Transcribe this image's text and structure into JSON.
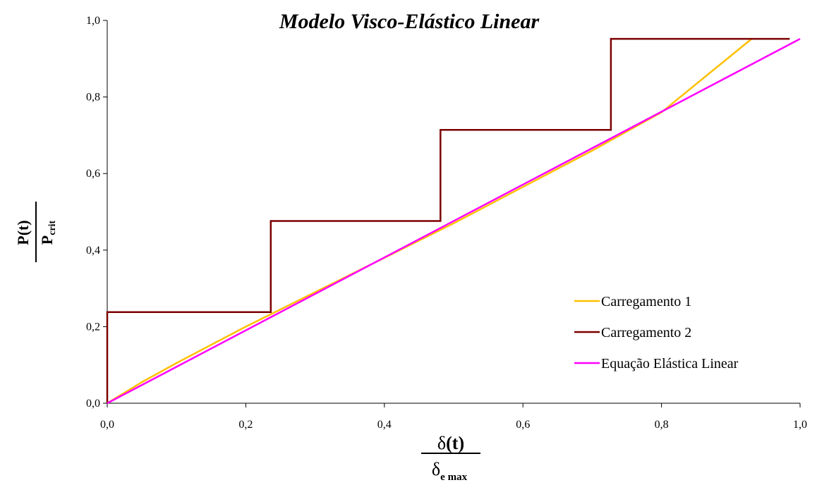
{
  "chart_data": {
    "type": "line",
    "title": "Modelo Visco-Elástico Linear",
    "xlabel": {
      "numerator_symbol": "δ",
      "numerator_rest": "(t)",
      "denominator_symbol": "δ",
      "denominator_sub": "e max"
    },
    "ylabel": {
      "numerator": "P(t)",
      "denominator_base": "P",
      "denominator_sub": "crit"
    },
    "xlim": [
      0,
      1
    ],
    "ylim": [
      0,
      1
    ],
    "xticks": [
      "0,0",
      "0,2",
      "0,4",
      "0,6",
      "0,8",
      "1,0"
    ],
    "yticks": [
      "0,0",
      "0,2",
      "0,4",
      "0,6",
      "0,8",
      "1,0"
    ],
    "grid": false,
    "legend_position": "right",
    "series": [
      {
        "name": "Carregamento 1",
        "color": "#FFC000",
        "x": [
          0,
          0.05,
          0.1,
          0.2,
          0.3,
          0.4,
          0.5,
          0.6,
          0.7,
          0.8,
          0.93
        ],
        "y": [
          0,
          0.055,
          0.105,
          0.2,
          0.29,
          0.38,
          0.47,
          0.565,
          0.66,
          0.76,
          0.952
        ]
      },
      {
        "name": "Carregamento 2",
        "color": "#7B0000",
        "x": [
          0,
          0,
          0.236,
          0.236,
          0.481,
          0.481,
          0.727,
          0.727,
          0.985
        ],
        "y": [
          0,
          0.238,
          0.238,
          0.476,
          0.476,
          0.714,
          0.714,
          0.952,
          0.952
        ]
      },
      {
        "name": "Equação Elástica Linear",
        "color": "#FF00FF",
        "x": [
          0,
          1
        ],
        "y": [
          0,
          0.952
        ]
      }
    ]
  }
}
